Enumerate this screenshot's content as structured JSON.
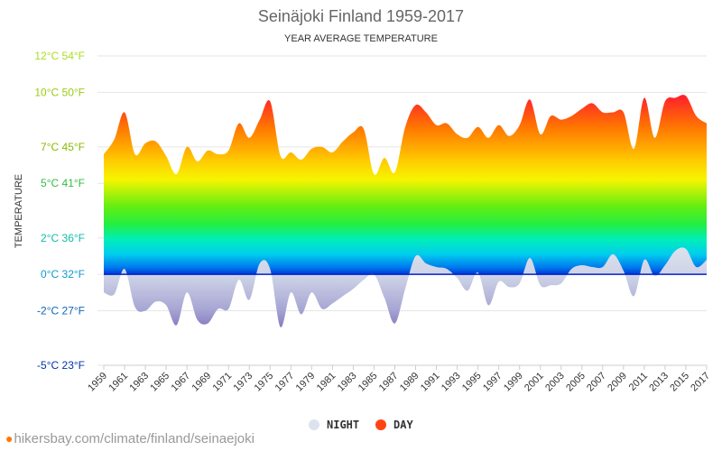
{
  "chart_data": {
    "type": "area",
    "title": "Seinäjoki Finland 1959-2017",
    "subtitle": "YEAR AVERAGE TEMPERATURE",
    "ylabel": "TEMPERATURE",
    "xlabel": "",
    "ylim": [
      -5,
      12
    ],
    "y_ticks": [
      {
        "value": 12,
        "label": "12°C 54°F",
        "color": "#aadd22"
      },
      {
        "value": 10,
        "label": "10°C 50°F",
        "color": "#99cc11"
      },
      {
        "value": 7,
        "label": "7°C 45°F",
        "color": "#88bb00"
      },
      {
        "value": 5,
        "label": "5°C 41°F",
        "color": "#33bb44"
      },
      {
        "value": 2,
        "label": "2°C 36°F",
        "color": "#11bbaa"
      },
      {
        "value": 0,
        "label": "0°C 32°F",
        "color": "#1199cc"
      },
      {
        "value": -2,
        "label": "-2°C 27°F",
        "color": "#1166bb"
      },
      {
        "value": -5,
        "label": "-5°C 23°F",
        "color": "#0033aa"
      }
    ],
    "x": [
      1959,
      1960,
      1961,
      1962,
      1963,
      1964,
      1965,
      1966,
      1967,
      1968,
      1969,
      1970,
      1971,
      1972,
      1973,
      1974,
      1975,
      1976,
      1977,
      1978,
      1979,
      1980,
      1981,
      1982,
      1983,
      1984,
      1985,
      1986,
      1987,
      1988,
      1989,
      1990,
      1991,
      1992,
      1993,
      1994,
      1995,
      1996,
      1997,
      1998,
      1999,
      2000,
      2001,
      2002,
      2003,
      2004,
      2005,
      2006,
      2007,
      2008,
      2009,
      2010,
      2011,
      2012,
      2013,
      2014,
      2015,
      2016,
      2017
    ],
    "x_tick_labels": [
      "1959",
      "1961",
      "1963",
      "1965",
      "1967",
      "1969",
      "1971",
      "1973",
      "1975",
      "1977",
      "1979",
      "1981",
      "1983",
      "1985",
      "1987",
      "1989",
      "1991",
      "1993",
      "1995",
      "1997",
      "1999",
      "2001",
      "2003",
      "2005",
      "2007",
      "2009",
      "2011",
      "2013",
      "2015",
      "2017"
    ],
    "series": [
      {
        "name": "DAY",
        "color": "#ff4411",
        "values": [
          6.6,
          7.4,
          8.9,
          6.6,
          7.2,
          7.3,
          6.5,
          5.5,
          7.0,
          6.2,
          6.8,
          6.6,
          6.8,
          8.3,
          7.5,
          8.5,
          9.5,
          6.5,
          6.7,
          6.3,
          6.9,
          7.0,
          6.7,
          7.3,
          7.8,
          8.0,
          5.5,
          6.4,
          5.6,
          8.1,
          9.3,
          8.9,
          8.2,
          8.3,
          7.7,
          7.5,
          8.1,
          7.5,
          8.2,
          7.6,
          8.2,
          9.6,
          7.7,
          8.7,
          8.5,
          8.7,
          9.1,
          9.4,
          8.9,
          8.9,
          8.9,
          6.9,
          9.7,
          7.5,
          9.5,
          9.7,
          9.8,
          8.7,
          8.3
        ]
      },
      {
        "name": "NIGHT",
        "color": "#dde3ee",
        "values": [
          -1.0,
          -1.1,
          0.3,
          -1.8,
          -2.0,
          -1.5,
          -1.7,
          -2.8,
          -1.0,
          -2.5,
          -2.7,
          -1.9,
          -1.9,
          -0.3,
          -1.4,
          0.6,
          0.3,
          -2.9,
          -1.0,
          -2.2,
          -1.0,
          -1.9,
          -1.6,
          -1.2,
          -0.8,
          -0.3,
          0.0,
          -1.3,
          -2.7,
          -0.8,
          1.0,
          0.6,
          0.4,
          0.3,
          -0.2,
          -0.9,
          0.1,
          -1.7,
          -0.4,
          -0.7,
          -0.5,
          0.9,
          -0.6,
          -0.6,
          -0.5,
          0.3,
          0.5,
          0.4,
          0.4,
          1.1,
          0.2,
          -1.2,
          0.8,
          -0.1,
          0.5,
          1.3,
          1.4,
          0.4,
          0.8
        ]
      }
    ],
    "legend": {
      "position": "bottom-center",
      "items": [
        {
          "label": "NIGHT",
          "color": "#dde3ee"
        },
        {
          "label": "DAY",
          "color": "#ff4411"
        }
      ]
    },
    "grid": true
  },
  "footer": {
    "text": "hikersbay.com/climate/finland/seinaejoki",
    "pin_icon": "map-pin-icon"
  }
}
